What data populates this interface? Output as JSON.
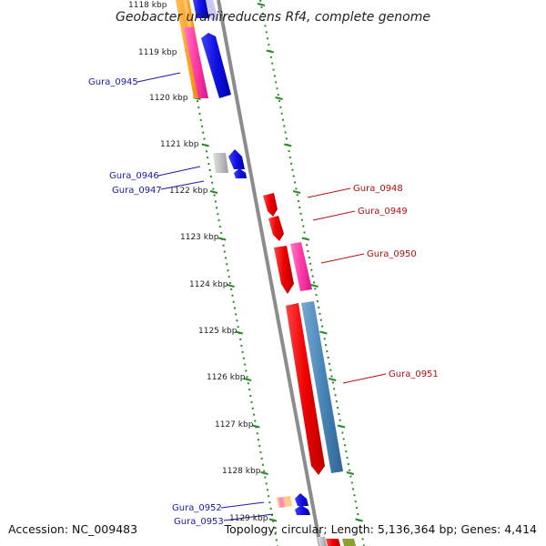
{
  "title": "Geobacter uraniireducens Rf4, complete genome",
  "footer": {
    "accession": "Accession: NC_009483",
    "topology": "Topology: circular; Length: 5,136,364 bp; Genes: 4,414"
  },
  "ticks": [
    "1118 kbp",
    "1119 kbp",
    "1120 kbp",
    "1121 kbp",
    "1122 kbp",
    "1123 kbp",
    "1124 kbp",
    "1125 kbp",
    "1126 kbp",
    "1127 kbp",
    "1128 kbp",
    "1129 kbp"
  ],
  "genes_left": [
    {
      "label": "Gura_0945",
      "color": "#1a1aa8"
    },
    {
      "label": "Gura_0946",
      "color": "#1a1aa8"
    },
    {
      "label": "Gura_0947",
      "color": "#1a1aa8"
    },
    {
      "label": "Gura_0952",
      "color": "#1a1aa8"
    },
    {
      "label": "Gura_0953",
      "color": "#1a1aa8"
    }
  ],
  "genes_right": [
    {
      "label": "Gura_0948",
      "color": "#b01010"
    },
    {
      "label": "Gura_0949",
      "color": "#b01010"
    },
    {
      "label": "Gura_0950",
      "color": "#b01010"
    },
    {
      "label": "Gura_0951",
      "color": "#b01010"
    }
  ],
  "colors": {
    "backbone": "#8c8c8c",
    "dotted_ring": "#2a8a2a",
    "forward_blue": "#1212e0",
    "reverse_red": "#ee1111",
    "pink": "#ff3fa8",
    "steel_blue": "#4a86b8",
    "orange": "#ff9a1a",
    "grey_gene": "#c0c0c0"
  }
}
